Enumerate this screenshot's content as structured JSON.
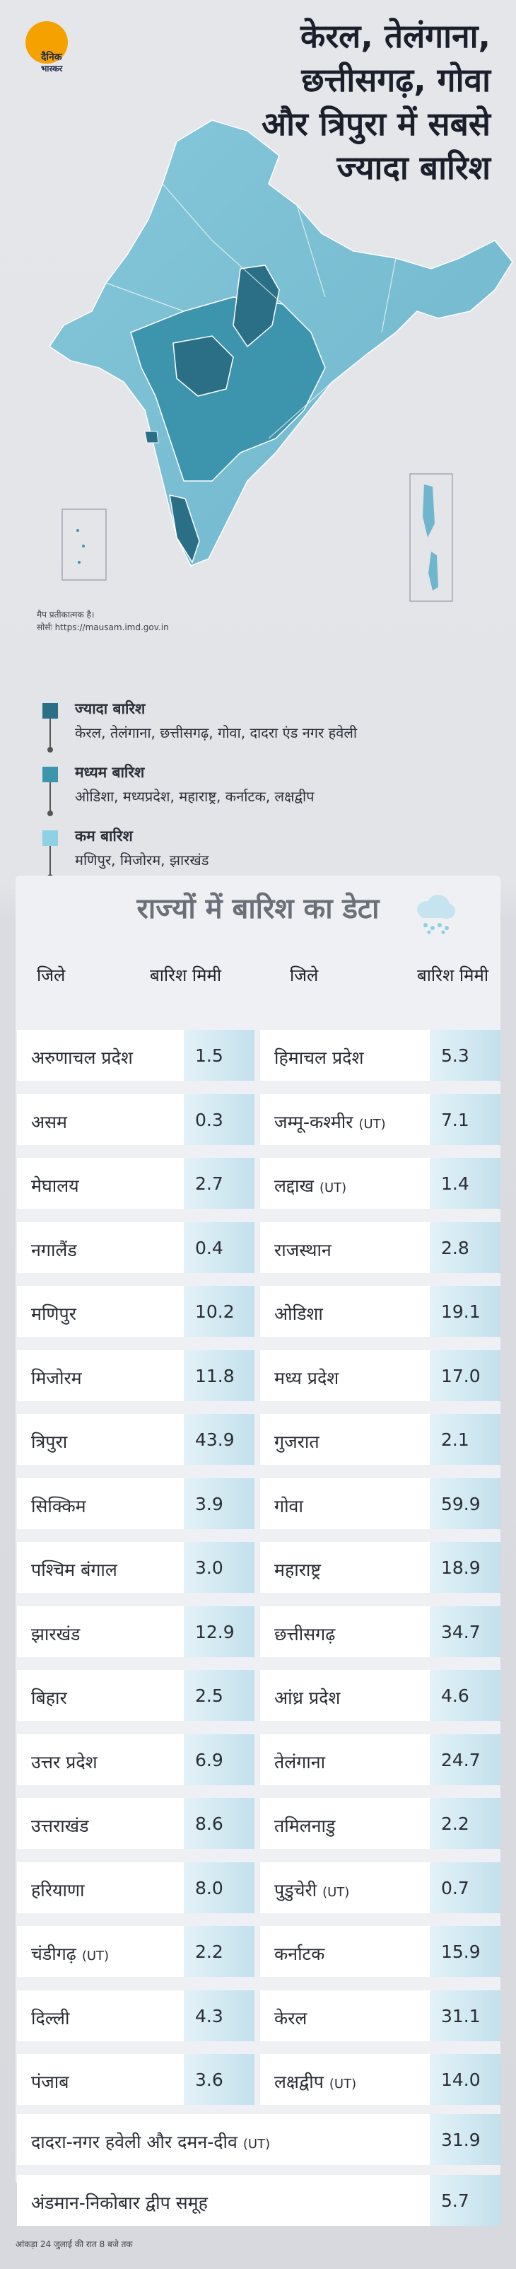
{
  "brand": {
    "line1": "दैनिक",
    "line2": "भास्कर"
  },
  "title": {
    "line1": "केरल, तेलंगाना,",
    "line2": "छत्तीसगढ़, गोवा",
    "line3": "और त्रिपुरा में सबसे",
    "line4": "ज्यादा बारिश"
  },
  "map": {
    "note1": "मैप प्रतीकात्मक है।",
    "note2": "सोर्सः https://mausam.imd.gov.in"
  },
  "legend": [
    {
      "label": "ज्यादा बारिश",
      "states": "केरल, तेलंगाना, छत्तीसगढ़, गोवा, दादरा एंड नगर हवेली",
      "color": "#2a6f86"
    },
    {
      "label": "मध्यम बारिश",
      "states": "ओडिशा, मध्यप्रदेश, महाराष्ट्र, कर्नाटक, लक्षद्वीप",
      "color": "#3d95ad"
    },
    {
      "label": "कम बारिश",
      "states": "मणिपुर, मिजोरम, झारखंड",
      "color": "#8ed0e4"
    }
  ],
  "table": {
    "title": "राज्यों में बारिश का डेटा",
    "col_state": "जिले",
    "col_rain": "बारिश मिमी"
  },
  "chart_data": {
    "type": "table",
    "title": "राज्यों में बारिश का डेटा",
    "columns": [
      "जिले",
      "बारिश मिमी"
    ],
    "left": [
      {
        "name": "अरुणाचल प्रदेश",
        "ut": "",
        "value": "1.5"
      },
      {
        "name": "असम",
        "ut": "",
        "value": "0.3"
      },
      {
        "name": "मेघालय",
        "ut": "",
        "value": "2.7"
      },
      {
        "name": "नगालैंड",
        "ut": "",
        "value": "0.4"
      },
      {
        "name": "मणिपुर",
        "ut": "",
        "value": "10.2"
      },
      {
        "name": "मिजोरम",
        "ut": "",
        "value": "11.8"
      },
      {
        "name": "त्रिपुरा",
        "ut": "",
        "value": "43.9"
      },
      {
        "name": "सिक्किम",
        "ut": "",
        "value": "3.9"
      },
      {
        "name": "पश्चिम बंगाल",
        "ut": "",
        "value": "3.0"
      },
      {
        "name": "झारखंड",
        "ut": "",
        "value": "12.9"
      },
      {
        "name": "बिहार",
        "ut": "",
        "value": "2.5"
      },
      {
        "name": "उत्तर प्रदेश",
        "ut": "",
        "value": "6.9"
      },
      {
        "name": "उत्तराखंड",
        "ut": "",
        "value": "8.6"
      },
      {
        "name": "हरियाणा",
        "ut": "",
        "value": "8.0"
      },
      {
        "name": "चंडीगढ़",
        "ut": "(UT)",
        "value": "2.2"
      },
      {
        "name": "दिल्ली",
        "ut": "",
        "value": "4.3"
      },
      {
        "name": "पंजाब",
        "ut": "",
        "value": "3.6"
      }
    ],
    "right": [
      {
        "name": "हिमाचल प्रदेश",
        "ut": "",
        "value": "5.3"
      },
      {
        "name": "जम्मू-कश्मीर",
        "ut": "(UT)",
        "value": "7.1"
      },
      {
        "name": "लद्दाख",
        "ut": "(UT)",
        "value": "1.4"
      },
      {
        "name": "राजस्थान",
        "ut": "",
        "value": "2.8"
      },
      {
        "name": "ओडिशा",
        "ut": "",
        "value": "19.1"
      },
      {
        "name": "मध्य प्रदेश",
        "ut": "",
        "value": "17.0"
      },
      {
        "name": "गुजरात",
        "ut": "",
        "value": "2.1"
      },
      {
        "name": "गोवा",
        "ut": "",
        "value": "59.9"
      },
      {
        "name": "महाराष्ट्र",
        "ut": "",
        "value": "18.9"
      },
      {
        "name": "छत्तीसगढ़",
        "ut": "",
        "value": "34.7"
      },
      {
        "name": "आंध्र प्रदेश",
        "ut": "",
        "value": "4.6"
      },
      {
        "name": "तेलंगाना",
        "ut": "",
        "value": "24.7"
      },
      {
        "name": "तमिलनाडु",
        "ut": "",
        "value": "2.2"
      },
      {
        "name": "पुडुचेरी",
        "ut": "(UT)",
        "value": "0.7"
      },
      {
        "name": "कर्नाटक",
        "ut": "",
        "value": "15.9"
      },
      {
        "name": "केरल",
        "ut": "",
        "value": "31.1"
      },
      {
        "name": "लक्षद्वीप",
        "ut": "(UT)",
        "value": "14.0"
      }
    ],
    "full": [
      {
        "name": "दादरा-नगर हवेली और दमन-दीव",
        "ut": "(UT)",
        "value": "31.9"
      },
      {
        "name": "अंडमान-निकोबार द्वीप समूह",
        "ut": "",
        "value": "5.7"
      }
    ]
  },
  "footnote": "आंकड़ा 24 जुलाई की रात 8 बजे तक"
}
